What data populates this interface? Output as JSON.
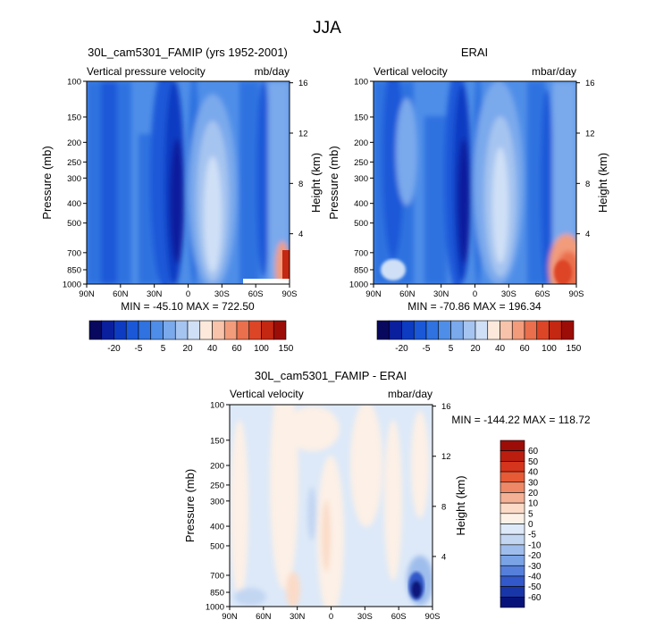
{
  "figure": {
    "title": "JJA"
  },
  "chart_data": [
    {
      "type": "heatmap",
      "name": "model",
      "title": "30L_cam5301_FAMIP (yrs 1952-2001)",
      "left_label": "Vertical pressure velocity",
      "right_label": "mb/day",
      "xlabel": "",
      "ylabel": "Pressure (mb)",
      "y2label": "Height (km)",
      "x_ticks": [
        "90N",
        "60N",
        "30N",
        "0",
        "30S",
        "60S",
        "90S"
      ],
      "x_values": [
        90,
        60,
        30,
        0,
        -30,
        -60,
        -90
      ],
      "y_ticks": [
        "100",
        "150",
        "200",
        "250",
        "300",
        "400",
        "500",
        "700",
        "850",
        "1000"
      ],
      "y_values": [
        100,
        150,
        200,
        250,
        300,
        400,
        500,
        700,
        850,
        1000
      ],
      "y_scale": "log",
      "y2_ticks": [
        "16",
        "12",
        "8",
        "4"
      ],
      "y2_values": [
        16,
        12,
        8,
        4
      ],
      "stats": "MIN = -45.10  MAX = 722.50",
      "min": -45.1,
      "max": 722.5,
      "colorbar_labels": [
        "-20",
        "-5",
        "5",
        "20",
        "40",
        "60",
        "100",
        "150"
      ]
    },
    {
      "type": "heatmap",
      "name": "obs",
      "title": "ERAI",
      "left_label": "Vertical velocity",
      "right_label": "mbar/day",
      "xlabel": "",
      "ylabel": "Pressure (mb)",
      "y2label": "Height (km)",
      "x_ticks": [
        "90N",
        "60N",
        "30N",
        "0",
        "30S",
        "60S",
        "90S"
      ],
      "x_values": [
        90,
        60,
        30,
        0,
        -30,
        -60,
        -90
      ],
      "y_ticks": [
        "100",
        "150",
        "200",
        "250",
        "300",
        "400",
        "500",
        "700",
        "850",
        "1000"
      ],
      "y_values": [
        100,
        150,
        200,
        250,
        300,
        400,
        500,
        700,
        850,
        1000
      ],
      "y_scale": "log",
      "y2_ticks": [
        "16",
        "12",
        "8",
        "4"
      ],
      "y2_values": [
        16,
        12,
        8,
        4
      ],
      "stats": "MIN = -70.86  MAX = 196.34",
      "min": -70.86,
      "max": 196.34,
      "colorbar_labels": [
        "-20",
        "-5",
        "5",
        "20",
        "40",
        "60",
        "100",
        "150"
      ]
    },
    {
      "type": "heatmap",
      "name": "diff",
      "title": "30L_cam5301_FAMIP - ERAI",
      "left_label": "Vertical velocity",
      "right_label": "mbar/day",
      "xlabel": "",
      "ylabel": "Pressure (mb)",
      "y2label": "Height (km)",
      "x_ticks": [
        "90N",
        "60N",
        "30N",
        "0",
        "30S",
        "60S",
        "90S"
      ],
      "x_values": [
        90,
        60,
        30,
        0,
        -30,
        -60,
        -90
      ],
      "y_ticks": [
        "100",
        "150",
        "200",
        "250",
        "300",
        "400",
        "500",
        "700",
        "850",
        "1000"
      ],
      "y_values": [
        100,
        150,
        200,
        250,
        300,
        400,
        500,
        700,
        850,
        1000
      ],
      "y_scale": "log",
      "y2_ticks": [
        "16",
        "12",
        "8",
        "4"
      ],
      "y2_values": [
        16,
        12,
        8,
        4
      ],
      "stats": "MIN = -144.22  MAX = 118.72",
      "min": -144.22,
      "max": 118.72,
      "colorbar_labels": [
        "60",
        "50",
        "40",
        "30",
        "20",
        "10",
        "5",
        "0",
        "-5",
        "-10",
        "-20",
        "-30",
        "-40",
        "-50",
        "-60"
      ]
    }
  ],
  "colors": {
    "top_colorbar": [
      "#08085e",
      "#0a1f9e",
      "#0d3bc2",
      "#1a58d8",
      "#2f72e0",
      "#4f8ee8",
      "#7aa9ec",
      "#a6c4f0",
      "#cfe0f6",
      "#fce9dc",
      "#f7c3aa",
      "#f29c7c",
      "#ea6f4d",
      "#dd4527",
      "#c42712",
      "#9c0d08"
    ],
    "diff_colorbar": [
      "#9c0d08",
      "#bb1e0f",
      "#d5351c",
      "#e65a36",
      "#ef8866",
      "#f5b195",
      "#fbdbc8",
      "#fdf0e6",
      "#dde9f8",
      "#c2d6f2",
      "#9fbdec",
      "#7aa3e6",
      "#557fdb",
      "#3258c9",
      "#1936a8",
      "#08137a"
    ]
  }
}
